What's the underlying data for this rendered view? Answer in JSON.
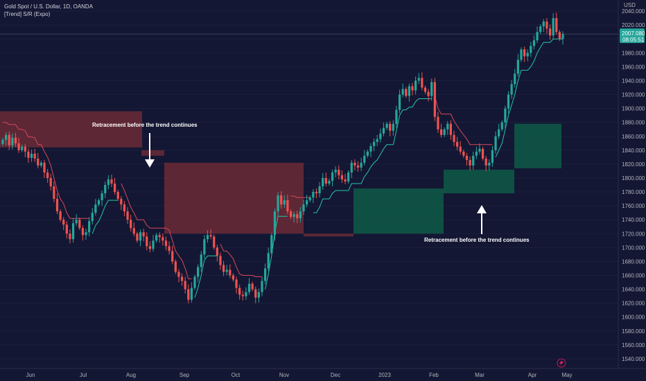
{
  "header": {
    "symbol_line": "Gold Spot / U.S. Dollar, 1D, OANDA",
    "indicator_line": "[Trend] S/R (Expo)"
  },
  "price_axis": {
    "unit": "USD",
    "ticks": [
      2040,
      2020,
      2000,
      1980,
      1960,
      1940,
      1920,
      1900,
      1880,
      1860,
      1840,
      1820,
      1800,
      1780,
      1760,
      1740,
      1720,
      1700,
      1680,
      1660,
      1640,
      1620,
      1600,
      1580,
      1560,
      1540
    ],
    "tick_labels": [
      "2040.000",
      "2020.000",
      "2000.000",
      "1980.000",
      "1960.000",
      "1940.000",
      "1920.000",
      "1900.000",
      "1880.000",
      "1860.000",
      "1840.000",
      "1820.000",
      "1800.000",
      "1780.000",
      "1760.000",
      "1740.000",
      "1720.000",
      "1700.000",
      "1680.000",
      "1660.000",
      "1640.000",
      "1620.000",
      "1600.000",
      "1580.000",
      "1560.000",
      "1540.000"
    ],
    "current_price": "2007.080",
    "countdown": "08:05:51"
  },
  "time_axis": {
    "labels": [
      "Jun",
      "Jul",
      "Aug",
      "Sep",
      "Oct",
      "Nov",
      "Dec",
      "2023",
      "Feb",
      "Mar",
      "Apr",
      "May"
    ]
  },
  "annotations": [
    {
      "text": "Retracement before the trend continues",
      "arrow": "down"
    },
    {
      "text": "Retracement before the trend continues",
      "arrow": "up"
    }
  ],
  "colors": {
    "background": "#131733",
    "up_candle": "#26a69a",
    "down_candle": "#ef5350",
    "support_zone": "#0f5a48",
    "resistance_zone": "#6b2a37",
    "trend_up_line": "#26c6a6",
    "trend_down_line": "#d9485a",
    "price_tag": "#26a69a"
  },
  "icons": {
    "bottom_right": "lightning-icon"
  },
  "chart_data": {
    "type": "candlestick",
    "title": "Gold Spot / U.S. Dollar, 1D, OANDA",
    "ylabel": "USD",
    "ylim": [
      1530,
      2060
    ],
    "series": [
      {
        "name": "XAUUSD",
        "values": [
          1855,
          1862,
          1847,
          1858,
          1850,
          1840,
          1845,
          1838,
          1829,
          1835,
          1828,
          1818,
          1822,
          1808,
          1800,
          1788,
          1770,
          1752,
          1740,
          1733,
          1720,
          1712,
          1735,
          1740,
          1728,
          1718,
          1722,
          1738,
          1750,
          1762,
          1768,
          1778,
          1790,
          1798,
          1792,
          1780,
          1770,
          1762,
          1752,
          1740,
          1728,
          1720,
          1710,
          1722,
          1716,
          1702,
          1698,
          1710,
          1718,
          1715,
          1710,
          1702,
          1695,
          1680,
          1665,
          1658,
          1652,
          1640,
          1625,
          1642,
          1658,
          1672,
          1690,
          1712,
          1718,
          1716,
          1700,
          1688,
          1675,
          1665,
          1668,
          1660,
          1654,
          1642,
          1632,
          1630,
          1636,
          1648,
          1640,
          1628,
          1636,
          1652,
          1670,
          1692,
          1718,
          1752,
          1775,
          1762,
          1768,
          1752,
          1744,
          1748,
          1742,
          1752,
          1762,
          1768,
          1772,
          1780,
          1778,
          1788,
          1800,
          1792,
          1796,
          1808,
          1812,
          1804,
          1798,
          1795,
          1808,
          1822,
          1818,
          1815,
          1822,
          1832,
          1838,
          1846,
          1852,
          1856,
          1864,
          1872,
          1878,
          1868,
          1878,
          1898,
          1920,
          1928,
          1918,
          1932,
          1926,
          1940,
          1944,
          1930,
          1924,
          1918,
          1938,
          1888,
          1870,
          1862,
          1870,
          1878,
          1862,
          1852,
          1845,
          1838,
          1832,
          1826,
          1818,
          1832,
          1838,
          1842,
          1828,
          1818,
          1822,
          1840,
          1860,
          1870,
          1880,
          1900,
          1920,
          1935,
          1950,
          1970,
          1985,
          1975,
          1980,
          1990,
          1998,
          2010,
          2018,
          2025,
          2015,
          2005,
          2030,
          2010,
          2000,
          2007
        ]
      }
    ],
    "support_resistance": [
      {
        "type": "resistance",
        "top": 1896,
        "bottom": 1844
      },
      {
        "type": "resistance",
        "top": 1840,
        "bottom": 1832
      },
      {
        "type": "resistance",
        "top": 1822,
        "bottom": 1720
      },
      {
        "type": "resistance",
        "top": 1720,
        "bottom": 1716
      },
      {
        "type": "support",
        "top": 1785,
        "bottom": 1720
      },
      {
        "type": "support",
        "top": 1812,
        "bottom": 1778
      },
      {
        "type": "support",
        "top": 1878,
        "bottom": 1814
      }
    ]
  }
}
